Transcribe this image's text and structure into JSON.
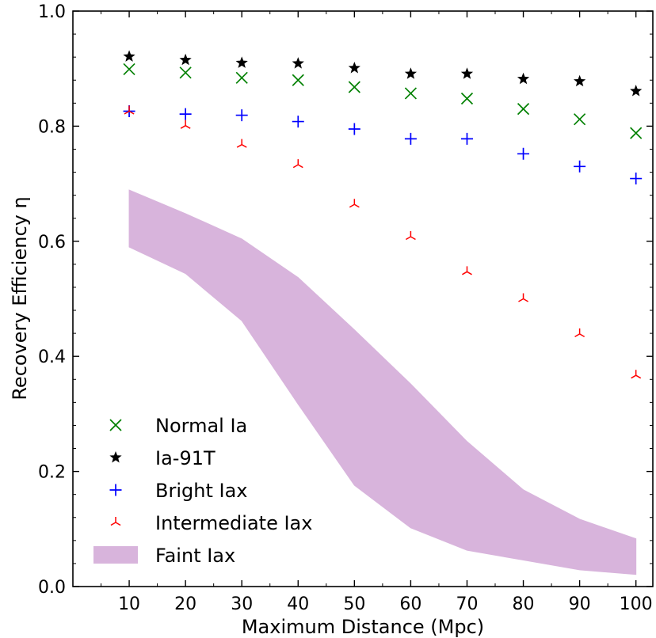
{
  "chart_data": {
    "type": "scatter",
    "title": "",
    "xlabel": "Maximum Distance (Mpc)",
    "ylabel": "Recovery Efficiency η",
    "xlim": [
      0,
      103
    ],
    "ylim": [
      0.0,
      1.0
    ],
    "xticks": [
      10,
      20,
      30,
      40,
      50,
      60,
      70,
      80,
      90,
      100
    ],
    "yticks": [
      0.0,
      0.2,
      0.4,
      0.6,
      0.8,
      1.0
    ],
    "xtick_labels": [
      "10",
      "20",
      "30",
      "40",
      "50",
      "60",
      "70",
      "80",
      "90",
      "100"
    ],
    "ytick_labels": [
      "0.0",
      "0.2",
      "0.4",
      "0.6",
      "0.8",
      "1.0"
    ],
    "grid": false,
    "legend_position": "lower-left",
    "x": [
      10,
      20,
      30,
      40,
      50,
      60,
      70,
      80,
      90,
      100
    ],
    "series": [
      {
        "name": "Normal Ia",
        "marker": "x",
        "color": "#008000",
        "values": [
          0.899,
          0.893,
          0.884,
          0.88,
          0.868,
          0.857,
          0.848,
          0.83,
          0.812,
          0.788
        ]
      },
      {
        "name": "Ia-91T",
        "marker": "star",
        "color": "#000000",
        "values": [
          0.921,
          0.915,
          0.91,
          0.909,
          0.901,
          0.891,
          0.891,
          0.882,
          0.878,
          0.861
        ]
      },
      {
        "name": "Bright Iax",
        "marker": "plus",
        "color": "#0000ff",
        "values": [
          0.826,
          0.821,
          0.819,
          0.808,
          0.795,
          0.778,
          0.778,
          0.752,
          0.73,
          0.709
        ]
      },
      {
        "name": "Intermediate Iax",
        "marker": "tri_down",
        "color": "#ff0000",
        "values": [
          0.826,
          0.801,
          0.768,
          0.733,
          0.664,
          0.608,
          0.547,
          0.5,
          0.439,
          0.367
        ]
      }
    ],
    "band": {
      "name": "Faint Iax",
      "color": "#d8b4dc",
      "upper": [
        0.689,
        0.648,
        0.604,
        0.537,
        0.446,
        0.352,
        0.252,
        0.168,
        0.117,
        0.083
      ],
      "lower": [
        0.59,
        0.544,
        0.462,
        0.317,
        0.176,
        0.102,
        0.063,
        0.046,
        0.029,
        0.021
      ]
    }
  }
}
